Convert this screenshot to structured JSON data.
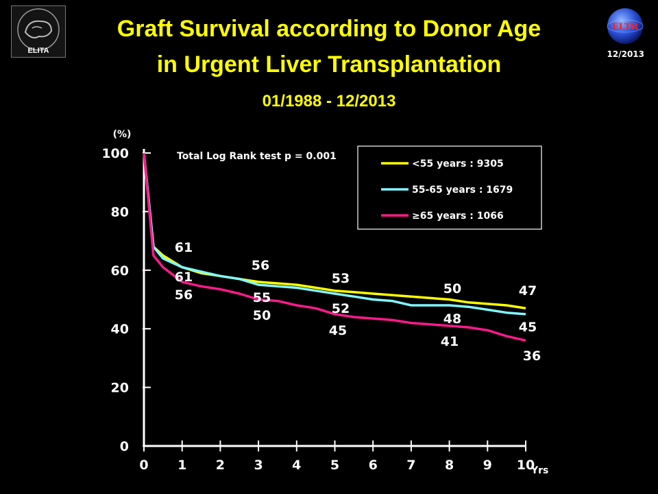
{
  "header": {
    "title_line1": "Graft Survival according to Donor Age",
    "title_line2": "in Urgent Liver Transplantation",
    "subtitle": "01/1988 - 12/2013",
    "date_stamp": "12/2013",
    "logo_left_text": "ELITA",
    "logo_right_text": "ELTR"
  },
  "colors": {
    "background": "#000000",
    "title": "#ffff00",
    "text": "#ffffff",
    "axis": "#ffffff"
  },
  "chart_data": {
    "type": "line",
    "title": "Graft Survival according to Donor Age in Urgent Liver Transplantation",
    "ylabel": "(%)",
    "xlabel": "Yrs",
    "xlim": [
      0,
      10
    ],
    "ylim": [
      0,
      100
    ],
    "xticks": [
      0,
      1,
      2,
      3,
      4,
      5,
      6,
      7,
      8,
      9,
      10
    ],
    "yticks": [
      0,
      20,
      40,
      60,
      80,
      100
    ],
    "grid": false,
    "legend_position": "top-right",
    "annotation": "Total Log Rank test p = 0.001",
    "series": [
      {
        "name": "<55 years : 9305",
        "color": "#ffff00",
        "x": [
          0,
          0.25,
          0.5,
          0.75,
          1,
          1.5,
          2,
          2.5,
          3,
          3.5,
          4,
          4.5,
          5,
          5.5,
          6,
          6.5,
          7,
          7.5,
          8,
          8.5,
          9,
          9.5,
          10
        ],
        "y": [
          100,
          68,
          65,
          63,
          61,
          59,
          58,
          57,
          56,
          55.5,
          55,
          54,
          53,
          52.5,
          52,
          51.5,
          51,
          50.5,
          50,
          49,
          48.5,
          48,
          47
        ]
      },
      {
        "name": "55-65 years : 1679",
        "color": "#7ff8ff",
        "x": [
          0,
          0.25,
          0.5,
          0.75,
          1,
          1.5,
          2,
          2.5,
          3,
          3.5,
          4,
          4.5,
          5,
          5.5,
          6,
          6.5,
          7,
          7.5,
          8,
          8.5,
          9,
          9.5,
          10
        ],
        "y": [
          100,
          68,
          64,
          62.5,
          61,
          59.5,
          58,
          57,
          55,
          54.5,
          54,
          53,
          52,
          51,
          50,
          49.5,
          48,
          48,
          48,
          47.5,
          46.5,
          45.5,
          45
        ]
      },
      {
        "name": "≥65 years : 1066",
        "color": "#ff1a8c",
        "x": [
          0,
          0.25,
          0.5,
          0.75,
          1,
          1.5,
          2,
          2.5,
          3,
          3.5,
          4,
          4.5,
          5,
          5.5,
          6,
          6.5,
          7,
          7.5,
          8,
          8.5,
          9,
          9.5,
          10
        ],
        "y": [
          100,
          65,
          61,
          58.5,
          56,
          54.5,
          53.5,
          52,
          50,
          49.5,
          48,
          47,
          45,
          44,
          43.5,
          43,
          42,
          41.5,
          41,
          40.5,
          39.5,
          37.5,
          36
        ]
      }
    ],
    "data_labels": [
      {
        "x": 1,
        "y": 61,
        "text": "61"
      },
      {
        "x": 1,
        "y": 61,
        "text": "61"
      },
      {
        "x": 1,
        "y": 56,
        "text": "56"
      },
      {
        "x": 3,
        "y": 56,
        "text": "56"
      },
      {
        "x": 3,
        "y": 55,
        "text": "55"
      },
      {
        "x": 3,
        "y": 50,
        "text": "50"
      },
      {
        "x": 5,
        "y": 53,
        "text": "53"
      },
      {
        "x": 5,
        "y": 52,
        "text": "52"
      },
      {
        "x": 5,
        "y": 45,
        "text": "45"
      },
      {
        "x": 8,
        "y": 50,
        "text": "50"
      },
      {
        "x": 8,
        "y": 48,
        "text": "48"
      },
      {
        "x": 8,
        "y": 41,
        "text": "41"
      },
      {
        "x": 10,
        "y": 47,
        "text": "47"
      },
      {
        "x": 10,
        "y": 45,
        "text": "45"
      },
      {
        "x": 10,
        "y": 36,
        "text": "36"
      }
    ]
  }
}
